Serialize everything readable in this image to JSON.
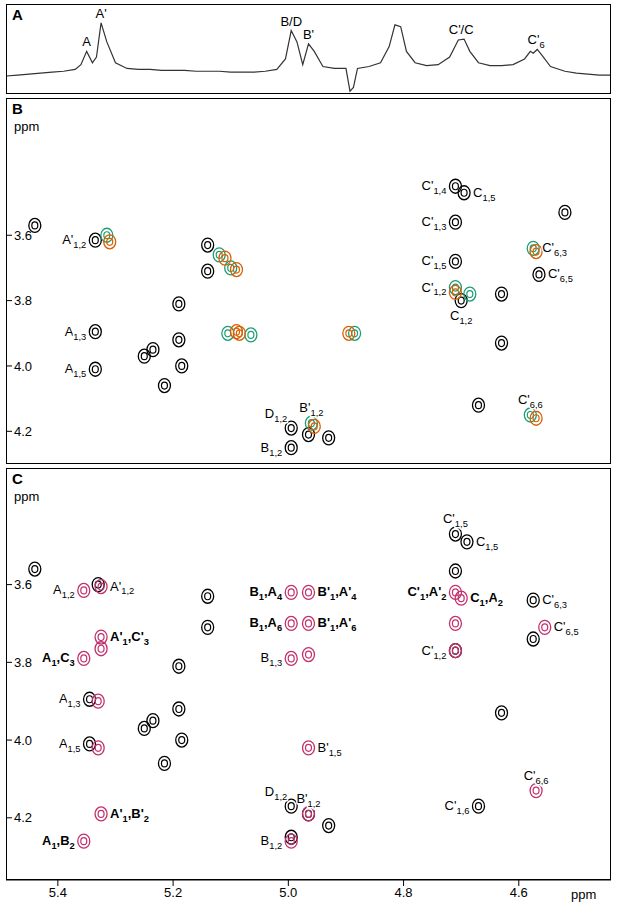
{
  "chart_data": [
    {
      "type": "line",
      "title": "A",
      "tick_labels": false,
      "color": "#333333",
      "xlim": [
        5.49,
        4.44
      ],
      "ylim": [
        -15,
        80
      ],
      "x": [
        5.49,
        5.47,
        5.45,
        5.43,
        5.41,
        5.39,
        5.37,
        5.36,
        5.35,
        5.34,
        5.333,
        5.325,
        5.315,
        5.3,
        5.28,
        5.26,
        5.24,
        5.22,
        5.2,
        5.18,
        5.16,
        5.14,
        5.12,
        5.1,
        5.08,
        5.06,
        5.04,
        5.02,
        5.005,
        4.995,
        4.985,
        4.975,
        4.965,
        4.955,
        4.94,
        4.92,
        4.9,
        4.893,
        4.887,
        4.88,
        4.86,
        4.84,
        4.825,
        4.815,
        4.805,
        4.795,
        4.78,
        4.76,
        4.74,
        4.72,
        4.705,
        4.695,
        4.685,
        4.67,
        4.65,
        4.63,
        4.61,
        4.59,
        4.58,
        4.575,
        4.568,
        4.56,
        4.545,
        4.52,
        4.5,
        4.48,
        4.46,
        4.44
      ],
      "values": [
        4,
        5,
        6,
        7,
        8,
        9,
        11,
        16,
        30,
        18,
        24,
        60,
        40,
        18,
        12,
        11,
        11,
        10,
        10,
        10,
        9,
        9,
        9,
        8,
        8,
        8,
        9,
        11,
        22,
        52,
        40,
        16,
        38,
        30,
        14,
        12,
        12,
        -12,
        -8,
        12,
        14,
        18,
        35,
        58,
        56,
        30,
        18,
        15,
        16,
        24,
        42,
        43,
        30,
        18,
        15,
        15,
        16,
        22,
        30,
        28,
        32,
        26,
        14,
        9,
        7,
        6,
        5,
        5
      ],
      "annotations": [
        {
          "text": "A",
          "x": 5.35
        },
        {
          "text": "A'",
          "x": 5.325
        },
        {
          "text": "B/D",
          "x": 4.995
        },
        {
          "text": "B'",
          "x": 4.965
        },
        {
          "text": "C'/C",
          "x": 4.7
        },
        {
          "text": "C'6",
          "x": 4.57
        }
      ]
    },
    {
      "type": "scatter",
      "title": "B",
      "tick_labels": "y",
      "ylabel": "ppm",
      "xlim": [
        5.49,
        4.44
      ],
      "ylim": [
        4.3,
        3.18
      ],
      "yticks": [
        3.6,
        3.8,
        {
          "value": 4,
          "label": "4.0"
        },
        4.2
      ],
      "series": [
        {
          "color": "#000000",
          "points": [
            {
              "x": 5.44,
              "y": 3.57
            },
            {
              "x": 5.335,
              "y": 3.615,
              "label": "A'1,2"
            },
            {
              "x": 5.335,
              "y": 3.895,
              "label": "A1,3"
            },
            {
              "x": 5.335,
              "y": 4.01,
              "label": "A1,5"
            },
            {
              "x": 5.25,
              "y": 3.97
            },
            {
              "x": 5.235,
              "y": 3.95
            },
            {
              "x": 5.215,
              "y": 4.06
            },
            {
              "x": 5.19,
              "y": 3.92
            },
            {
              "x": 5.185,
              "y": 4.0
            },
            {
              "x": 5.19,
              "y": 3.81
            },
            {
              "x": 5.14,
              "y": 3.63
            },
            {
              "x": 5.14,
              "y": 3.71
            },
            {
              "x": 4.995,
              "y": 4.25,
              "label": "B1,2"
            },
            {
              "x": 4.995,
              "y": 4.19,
              "label": "D1,2"
            },
            {
              "x": 4.965,
              "y": 4.21
            },
            {
              "x": 4.93,
              "y": 4.22
            },
            {
              "x": 4.71,
              "y": 3.45,
              "label": "C'1,4"
            },
            {
              "x": 4.695,
              "y": 3.47,
              "label": "C1,5"
            },
            {
              "x": 4.71,
              "y": 3.56,
              "label": "C'1,3"
            },
            {
              "x": 4.71,
              "y": 3.68,
              "label": "C'1,5"
            },
            {
              "x": 4.7,
              "y": 3.8,
              "label": "C1,2"
            },
            {
              "x": 4.63,
              "y": 3.78
            },
            {
              "x": 4.63,
              "y": 3.93
            },
            {
              "x": 4.67,
              "y": 4.12
            },
            {
              "x": 4.565,
              "y": 3.72,
              "label": "C'6,5"
            },
            {
              "x": 4.52,
              "y": 3.53
            }
          ]
        },
        {
          "color": "#1b9e77",
          "points": [
            {
              "x": 5.315,
              "y": 3.6
            },
            {
              "x": 5.12,
              "y": 3.66
            },
            {
              "x": 5.1,
              "y": 3.7
            },
            {
              "x": 5.105,
              "y": 3.9
            },
            {
              "x": 5.065,
              "y": 3.905
            },
            {
              "x": 4.885,
              "y": 3.9
            },
            {
              "x": 4.96,
              "y": 4.175,
              "label": "B'1,2"
            },
            {
              "x": 4.71,
              "y": 3.76,
              "label": "C'1,2"
            },
            {
              "x": 4.685,
              "y": 3.78
            },
            {
              "x": 4.575,
              "y": 3.64,
              "label": "C'6,3"
            },
            {
              "x": 4.58,
              "y": 4.15,
              "label": "C'6,6"
            }
          ]
        },
        {
          "color": "#d95f02",
          "points": [
            {
              "x": 5.31,
              "y": 3.62
            },
            {
              "x": 5.11,
              "y": 3.67
            },
            {
              "x": 5.09,
              "y": 3.705
            },
            {
              "x": 5.09,
              "y": 3.895
            },
            {
              "x": 5.085,
              "y": 3.9
            },
            {
              "x": 4.895,
              "y": 3.9
            },
            {
              "x": 4.955,
              "y": 4.185
            },
            {
              "x": 4.71,
              "y": 3.775
            },
            {
              "x": 4.57,
              "y": 3.65
            },
            {
              "x": 4.57,
              "y": 4.16
            }
          ]
        }
      ]
    },
    {
      "type": "scatter",
      "title": "C",
      "xlabel": "ppm",
      "ylabel": "ppm",
      "xlim": [
        5.49,
        4.44
      ],
      "ylim": [
        4.36,
        3.3
      ],
      "xticks": [
        5.4,
        5.2,
        {
          "value": 5,
          "label": "5.0"
        },
        4.8,
        4.6
      ],
      "yticks": [
        3.6,
        3.8,
        {
          "value": 4,
          "label": "4.0"
        },
        4.2
      ],
      "series": [
        {
          "color": "#000000",
          "points": [
            {
              "x": 5.44,
              "y": 3.56
            },
            {
              "x": 5.33,
              "y": 3.6
            },
            {
              "x": 5.345,
              "y": 3.895,
              "label": "A1,3"
            },
            {
              "x": 5.345,
              "y": 4.01,
              "label": "A1,5"
            },
            {
              "x": 5.25,
              "y": 3.97
            },
            {
              "x": 5.235,
              "y": 3.95
            },
            {
              "x": 5.215,
              "y": 4.06
            },
            {
              "x": 5.19,
              "y": 3.92
            },
            {
              "x": 5.185,
              "y": 4.0
            },
            {
              "x": 5.19,
              "y": 3.81
            },
            {
              "x": 5.14,
              "y": 3.63
            },
            {
              "x": 5.14,
              "y": 3.71
            },
            {
              "x": 4.995,
              "y": 4.17,
              "label": "D1,2"
            },
            {
              "x": 4.995,
              "y": 4.25
            },
            {
              "x": 4.93,
              "y": 4.22
            },
            {
              "x": 4.71,
              "y": 3.47,
              "label": "C'1,5"
            },
            {
              "x": 4.69,
              "y": 3.49,
              "label": "C1,5"
            },
            {
              "x": 4.71,
              "y": 3.565
            },
            {
              "x": 4.71,
              "y": 3.77
            },
            {
              "x": 4.63,
              "y": 3.93
            },
            {
              "x": 4.67,
              "y": 4.17,
              "label": "C'1,6"
            },
            {
              "x": 4.575,
              "y": 3.64,
              "label": "C'6,3"
            },
            {
              "x": 4.575,
              "y": 3.74
            },
            {
              "x": 4.965,
              "y": 4.19
            }
          ]
        },
        {
          "color": "#c2306e",
          "points": [
            {
              "x": 5.355,
              "y": 3.615,
              "label": "A1,2"
            },
            {
              "x": 5.325,
              "y": 3.605,
              "label": "A'1,2"
            },
            {
              "x": 5.325,
              "y": 3.735,
              "label": "A'1,C'3"
            },
            {
              "x": 5.325,
              "y": 3.765
            },
            {
              "x": 5.355,
              "y": 3.79,
              "label": "A1,C3"
            },
            {
              "x": 5.33,
              "y": 3.9
            },
            {
              "x": 5.33,
              "y": 4.02
            },
            {
              "x": 5.355,
              "y": 4.26,
              "label": "A1,B2"
            },
            {
              "x": 5.325,
              "y": 4.19,
              "label": "A'1,B'2"
            },
            {
              "x": 4.995,
              "y": 3.62,
              "label": "B1,A4"
            },
            {
              "x": 4.995,
              "y": 3.7,
              "label": "B1,A6"
            },
            {
              "x": 4.995,
              "y": 3.79,
              "label": "B1,3"
            },
            {
              "x": 4.965,
              "y": 3.62,
              "label": "B'1,A'4"
            },
            {
              "x": 4.965,
              "y": 3.7,
              "label": "B'1,A'6"
            },
            {
              "x": 4.965,
              "y": 3.78
            },
            {
              "x": 4.965,
              "y": 4.02,
              "label": "B'1,5"
            },
            {
              "x": 4.965,
              "y": 4.19,
              "label": "B'1,2"
            },
            {
              "x": 4.995,
              "y": 4.26,
              "label": "B1,2"
            },
            {
              "x": 4.71,
              "y": 3.62,
              "label": "C'1,A'2"
            },
            {
              "x": 4.7,
              "y": 3.635,
              "label": "C1,A2"
            },
            {
              "x": 4.71,
              "y": 3.7
            },
            {
              "x": 4.71,
              "y": 3.77,
              "label": "C'1,2"
            },
            {
              "x": 4.555,
              "y": 3.71,
              "label": "C'6,5"
            },
            {
              "x": 4.57,
              "y": 4.13,
              "label": "C'6,6"
            }
          ]
        }
      ]
    }
  ]
}
